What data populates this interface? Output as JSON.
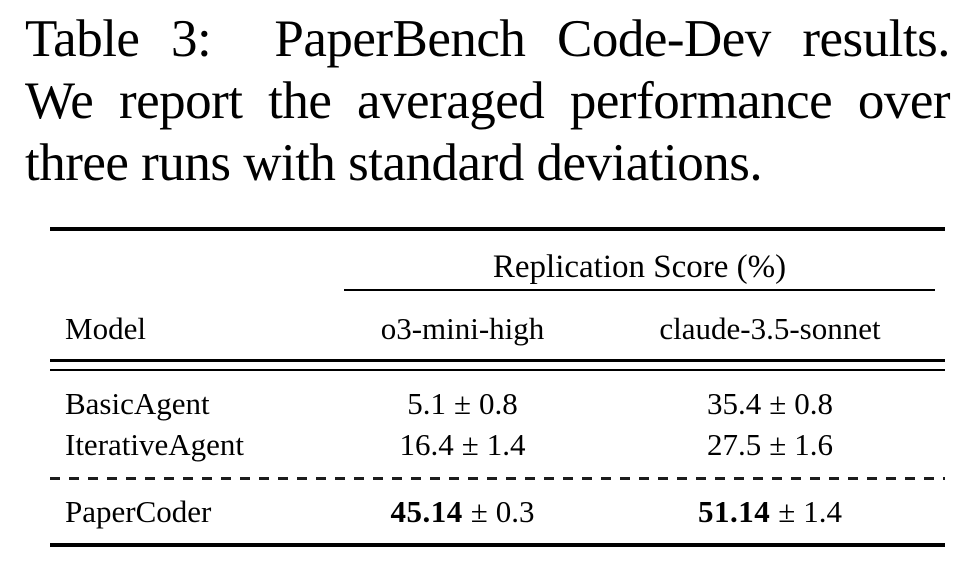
{
  "caption": {
    "lines": [
      "Table 3:  PaperBench Code-Dev results.",
      "We report the averaged performance over",
      "three runs with standard deviations."
    ]
  },
  "table": {
    "group_header": "Replication Score (%)",
    "plus_minus": "±",
    "columns": [
      "Model",
      "o3-mini-high",
      "claude-3.5-sonnet"
    ],
    "rows": [
      {
        "model": "BasicAgent",
        "values": [
          {
            "score": "5.1",
            "err": "0.8"
          },
          {
            "score": "35.4",
            "err": "0.8"
          }
        ]
      },
      {
        "model": "IterativeAgent",
        "values": [
          {
            "score": "16.4",
            "err": "1.4"
          },
          {
            "score": "27.5",
            "err": "1.6"
          }
        ]
      },
      {
        "model": "PaperCoder",
        "values": [
          {
            "score": "45.14",
            "err": "0.3"
          },
          {
            "score": "51.14",
            "err": "1.4"
          }
        ]
      }
    ]
  }
}
